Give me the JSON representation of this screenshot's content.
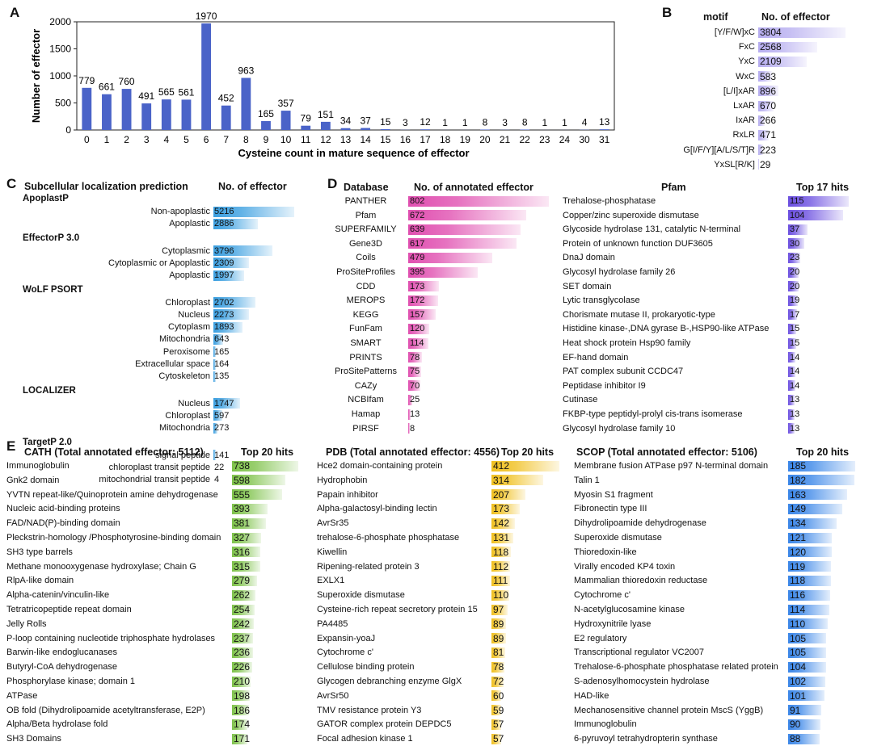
{
  "panels": {
    "a": "A",
    "b": "B",
    "c": "C",
    "d": "D",
    "e": "E"
  },
  "colors": {
    "barA": "#4a63c8",
    "blueC": "#3b9fe0",
    "purpleB": "#b7aef0",
    "pinkD": "#e04fb0",
    "purpleD": "#6b4fe0",
    "greenE": "#7ec24a",
    "yellowE": "#f0c020",
    "blueE": "#3a86e8"
  },
  "chart_data": {
    "type": "bar",
    "title": "",
    "xlabel": "Cysteine count in mature sequence of effector",
    "ylabel": "Number of effector",
    "ylim": [
      0,
      2000
    ],
    "yticks": [
      "0",
      "500",
      "1000",
      "1500",
      "2000"
    ],
    "categories": [
      "0",
      "1",
      "2",
      "3",
      "4",
      "5",
      "6",
      "7",
      "8",
      "9",
      "10",
      "11",
      "12",
      "13",
      "14",
      "15",
      "16",
      "17",
      "18",
      "19",
      "20",
      "21",
      "22",
      "23",
      "24",
      "30",
      "31"
    ],
    "values": [
      779,
      661,
      760,
      491,
      565,
      561,
      1970,
      452,
      963,
      165,
      357,
      79,
      151,
      34,
      37,
      15,
      3,
      12,
      1,
      1,
      8,
      3,
      8,
      1,
      1,
      4,
      13
    ],
    "labels": [
      "779",
      "661",
      "760",
      "491",
      "565",
      "561",
      "1970",
      "452",
      "963",
      "165",
      "357",
      "79",
      "151",
      "34",
      "37",
      "15",
      "3",
      "12",
      "1",
      "1",
      "8",
      "3",
      "8",
      "1",
      "1",
      "4",
      "13"
    ]
  },
  "panelB": {
    "header_motif": "motif",
    "header_count": "No. of effector",
    "max": 3804,
    "rows": [
      {
        "label": "[Y/F/W]xC",
        "value": 3804,
        "text": "3804"
      },
      {
        "label": "FxC",
        "value": 2568,
        "text": "2568"
      },
      {
        "label": "YxC",
        "value": 2109,
        "text": "2109"
      },
      {
        "label": "WxC",
        "value": 583,
        "text": "583"
      },
      {
        "label": "[L/I]xAR",
        "value": 896,
        "text": "896"
      },
      {
        "label": "LxAR",
        "value": 670,
        "text": "670"
      },
      {
        "label": "IxAR",
        "value": 266,
        "text": "266"
      },
      {
        "label": "RxLR",
        "value": 471,
        "text": "471"
      },
      {
        "label": "G[I/F/Y][A/L/S/T]R",
        "value": 223,
        "text": "223"
      },
      {
        "label": "YxSL[R/K]",
        "value": 29,
        "text": "29"
      }
    ]
  },
  "panelC": {
    "header_pred": "Subcellular localization prediction",
    "header_count": "No. of effector",
    "max": 5216,
    "sections": [
      {
        "name": "ApoplastP",
        "rows": [
          {
            "label": "Non-apoplastic",
            "value": 5216,
            "text": "5216"
          },
          {
            "label": "Apoplastic",
            "value": 2886,
            "text": "2886"
          }
        ]
      },
      {
        "name": "EffectorP 3.0",
        "rows": [
          {
            "label": "Cytoplasmic",
            "value": 3796,
            "text": "3796"
          },
          {
            "label": "Cytoplasmic or Apoplastic",
            "value": 2309,
            "text": "2309"
          },
          {
            "label": "Apoplastic",
            "value": 1997,
            "text": "1997"
          }
        ]
      },
      {
        "name": "WoLF PSORT",
        "rows": [
          {
            "label": "Chloroplast",
            "value": 2702,
            "text": "2702"
          },
          {
            "label": "Nucleus",
            "value": 2273,
            "text": "2273"
          },
          {
            "label": "Cytoplasm",
            "value": 1893,
            "text": "1893"
          },
          {
            "label": "Mitochondria",
            "value": 643,
            "text": "643"
          },
          {
            "label": "Peroxisome",
            "value": 165,
            "text": "165"
          },
          {
            "label": "Extracellular space",
            "value": 164,
            "text": "164"
          },
          {
            "label": "Cytoskeleton",
            "value": 135,
            "text": "135"
          }
        ]
      },
      {
        "name": "LOCALIZER",
        "rows": [
          {
            "label": "Nucleus",
            "value": 1747,
            "text": "1747"
          },
          {
            "label": "Chloroplast",
            "value": 597,
            "text": "597"
          },
          {
            "label": "Mitochondria",
            "value": 273,
            "text": "273"
          }
        ]
      },
      {
        "name": "TargetP 2.0",
        "rows": [
          {
            "label": "signal peptide",
            "value": 141,
            "text": "141"
          },
          {
            "label": "chloroplast transit peptide",
            "value": 22,
            "text": "22"
          },
          {
            "label": "mitochondrial transit peptide",
            "value": 4,
            "text": "4"
          }
        ]
      }
    ]
  },
  "panelD": {
    "header_db": "Database",
    "header_count": "No. of annotated effector",
    "header_pfam": "Pfam",
    "header_top": "Top 17 hits",
    "db_max": 802,
    "pfam_max": 115,
    "databases": [
      {
        "label": "PANTHER",
        "value": 802,
        "text": "802"
      },
      {
        "label": "Pfam",
        "value": 672,
        "text": "672"
      },
      {
        "label": "SUPERFAMILY",
        "value": 639,
        "text": "639"
      },
      {
        "label": "Gene3D",
        "value": 617,
        "text": "617"
      },
      {
        "label": "Coils",
        "value": 479,
        "text": "479"
      },
      {
        "label": "ProSiteProfiles",
        "value": 395,
        "text": "395"
      },
      {
        "label": "CDD",
        "value": 173,
        "text": "173"
      },
      {
        "label": "MEROPS",
        "value": 172,
        "text": "172"
      },
      {
        "label": "KEGG",
        "value": 157,
        "text": "157"
      },
      {
        "label": "FunFam",
        "value": 120,
        "text": "120"
      },
      {
        "label": "SMART",
        "value": 114,
        "text": "114"
      },
      {
        "label": "PRINTS",
        "value": 78,
        "text": "78"
      },
      {
        "label": "ProSitePatterns",
        "value": 75,
        "text": "75"
      },
      {
        "label": "CAZy",
        "value": 70,
        "text": "70"
      },
      {
        "label": "NCBIfam",
        "value": 25,
        "text": "25"
      },
      {
        "label": "Hamap",
        "value": 13,
        "text": "13"
      },
      {
        "label": "PIRSF",
        "value": 8,
        "text": "8"
      }
    ],
    "pfam": [
      {
        "label": "Trehalose-phosphatase",
        "value": 115,
        "text": "115"
      },
      {
        "label": "Copper/zinc superoxide dismutase",
        "value": 104,
        "text": "104"
      },
      {
        "label": "Glycoside hydrolase 131, catalytic N-terminal",
        "value": 37,
        "text": "37"
      },
      {
        "label": "Protein of unknown function DUF3605",
        "value": 30,
        "text": "30"
      },
      {
        "label": "DnaJ domain",
        "value": 23,
        "text": "23"
      },
      {
        "label": "Glycosyl hydrolase family 26",
        "value": 20,
        "text": "20"
      },
      {
        "label": "SET domain",
        "value": 20,
        "text": "20"
      },
      {
        "label": "Lytic transglycolase",
        "value": 19,
        "text": "19"
      },
      {
        "label": "Chorismate mutase II, prokaryotic-type",
        "value": 17,
        "text": "17"
      },
      {
        "label": "Histidine kinase-,DNA gyrase B-,HSP90-like ATPase",
        "value": 15,
        "text": "15"
      },
      {
        "label": "Heat shock protein Hsp90 family",
        "value": 15,
        "text": "15"
      },
      {
        "label": "EF-hand domain",
        "value": 14,
        "text": "14"
      },
      {
        "label": "PAT complex subunit CCDC47",
        "value": 14,
        "text": "14"
      },
      {
        "label": "Peptidase inhibitor I9",
        "value": 14,
        "text": "14"
      },
      {
        "label": "Cutinase",
        "value": 13,
        "text": "13"
      },
      {
        "label": "FKBP-type peptidyl-prolyl cis-trans isomerase",
        "value": 13,
        "text": "13"
      },
      {
        "label": "Glycosyl hydrolase family 10",
        "value": 13,
        "text": "13"
      }
    ]
  },
  "panelE": {
    "cath": {
      "header": "CATH (Total annotated effector: 5112)",
      "top": "Top 20 hits",
      "max": 738,
      "rows": [
        {
          "label": "Immunoglobulin",
          "value": 738,
          "text": "738"
        },
        {
          "label": "Gnk2 domain",
          "value": 598,
          "text": "598"
        },
        {
          "label": "YVTN repeat-like/Quinoprotein amine dehydrogenase",
          "value": 555,
          "text": "555"
        },
        {
          "label": "Nucleic acid-binding proteins",
          "value": 393,
          "text": "393"
        },
        {
          "label": "FAD/NAD(P)-binding domain",
          "value": 381,
          "text": "381"
        },
        {
          "label": "Pleckstrin-homology /Phosphotyrosine-binding domain",
          "value": 327,
          "text": "327"
        },
        {
          "label": "SH3 type barrels",
          "value": 316,
          "text": "316"
        },
        {
          "label": "Methane monooxygenase hydroxylase; Chain G",
          "value": 315,
          "text": "315"
        },
        {
          "label": "RlpA-like domain",
          "value": 279,
          "text": "279"
        },
        {
          "label": "Alpha-catenin/vinculin-like",
          "value": 262,
          "text": "262"
        },
        {
          "label": "Tetratricopeptide repeat domain",
          "value": 254,
          "text": "254"
        },
        {
          "label": "Jelly Rolls",
          "value": 242,
          "text": "242"
        },
        {
          "label": "P-loop containing nucleotide triphosphate hydrolases",
          "value": 237,
          "text": "237"
        },
        {
          "label": "Barwin-like endoglucanases",
          "value": 236,
          "text": "236"
        },
        {
          "label": "Butyryl-CoA dehydrogenase",
          "value": 226,
          "text": "226"
        },
        {
          "label": "Phosphorylase kinase; domain 1",
          "value": 210,
          "text": "210"
        },
        {
          "label": "ATPase",
          "value": 198,
          "text": "198"
        },
        {
          "label": "OB fold (Dihydrolipoamide acetyltransferase, E2P)",
          "value": 186,
          "text": "186"
        },
        {
          "label": "Alpha/Beta hydrolase fold",
          "value": 174,
          "text": "174"
        },
        {
          "label": "SH3 Domains",
          "value": 171,
          "text": "171"
        }
      ]
    },
    "pdb": {
      "header": "PDB (Total annotated effector: 4556)",
      "top": "Top 20 hits",
      "max": 412,
      "rows": [
        {
          "label": "Hce2 domain-containing protein",
          "value": 412,
          "text": "412"
        },
        {
          "label": "Hydrophobin",
          "value": 314,
          "text": "314"
        },
        {
          "label": "Papain inhibitor",
          "value": 207,
          "text": "207"
        },
        {
          "label": "Alpha-galactosyl-binding lectin",
          "value": 173,
          "text": "173"
        },
        {
          "label": "AvrSr35",
          "value": 142,
          "text": "142"
        },
        {
          "label": "trehalose-6-phosphate phosphatase",
          "value": 131,
          "text": "131"
        },
        {
          "label": "Kiwellin",
          "value": 118,
          "text": "118"
        },
        {
          "label": "Ripening-related protein 3",
          "value": 112,
          "text": "112"
        },
        {
          "label": "EXLX1",
          "value": 111,
          "text": "111"
        },
        {
          "label": "Superoxide dismutase",
          "value": 110,
          "text": "110"
        },
        {
          "label": "Cysteine-rich repeat secretory protein 15",
          "value": 97,
          "text": "97"
        },
        {
          "label": "PA4485",
          "value": 89,
          "text": "89"
        },
        {
          "label": "Expansin-yoaJ",
          "value": 89,
          "text": "89"
        },
        {
          "label": "Cytochrome c'",
          "value": 81,
          "text": "81"
        },
        {
          "label": "Cellulose binding protein",
          "value": 78,
          "text": "78"
        },
        {
          "label": "Glycogen debranching enzyme GlgX",
          "value": 72,
          "text": "72"
        },
        {
          "label": "AvrSr50",
          "value": 60,
          "text": "60"
        },
        {
          "label": "TMV resistance protein Y3",
          "value": 59,
          "text": "59"
        },
        {
          "label": "GATOR complex protein DEPDC5",
          "value": 57,
          "text": "57"
        },
        {
          "label": "Focal adhesion kinase 1",
          "value": 57,
          "text": "57"
        }
      ]
    },
    "scop": {
      "header": "SCOP (Total annotated effector: 5106)",
      "top": "Top 20 hits",
      "max": 185,
      "rows": [
        {
          "label": "Membrane fusion ATPase p97 N-terminal domain",
          "value": 185,
          "text": "185"
        },
        {
          "label": "Talin 1",
          "value": 182,
          "text": "182"
        },
        {
          "label": "Myosin S1 fragment",
          "value": 163,
          "text": "163"
        },
        {
          "label": "Fibronectin type III",
          "value": 149,
          "text": "149"
        },
        {
          "label": "Dihydrolipoamide dehydrogenase",
          "value": 134,
          "text": "134"
        },
        {
          "label": "Superoxide dismutase",
          "value": 121,
          "text": "121"
        },
        {
          "label": "Thioredoxin-like",
          "value": 120,
          "text": "120"
        },
        {
          "label": "Virally encoded KP4 toxin",
          "value": 119,
          "text": "119"
        },
        {
          "label": "Mammalian thioredoxin reductase",
          "value": 118,
          "text": "118"
        },
        {
          "label": "Cytochrome c'",
          "value": 116,
          "text": "116"
        },
        {
          "label": "N-acetylglucosamine kinase",
          "value": 114,
          "text": "114"
        },
        {
          "label": "Hydroxynitrile lyase",
          "value": 110,
          "text": "110"
        },
        {
          "label": "E2 regulatory",
          "value": 105,
          "text": "105"
        },
        {
          "label": "Transcriptional regulator VC2007",
          "value": 105,
          "text": "105"
        },
        {
          "label": "Trehalose-6-phosphate phosphatase related protein",
          "value": 104,
          "text": "104"
        },
        {
          "label": "S-adenosylhomocystein hydrolase",
          "value": 102,
          "text": "102"
        },
        {
          "label": "HAD-like",
          "value": 101,
          "text": "101"
        },
        {
          "label": "Mechanosensitive channel protein MscS (YggB)",
          "value": 91,
          "text": "91"
        },
        {
          "label": "Immunoglobulin",
          "value": 90,
          "text": "90"
        },
        {
          "label": "6-pyruvoyl tetrahydropterin synthase",
          "value": 88,
          "text": "88"
        }
      ]
    }
  }
}
